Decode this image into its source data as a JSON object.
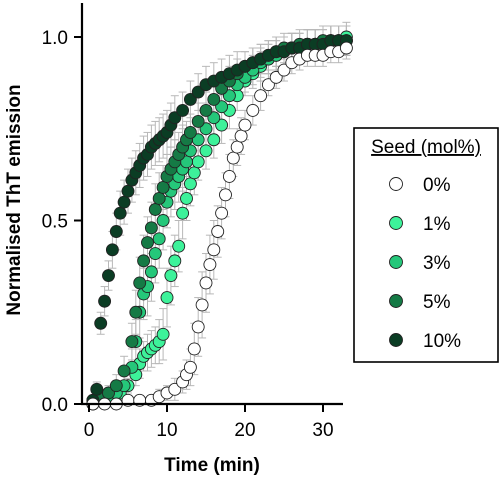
{
  "chart_data": {
    "type": "scatter",
    "xlabel": "Time (min)",
    "ylabel": "Normalised ThT emission",
    "xlim": [
      -0.5,
      34
    ],
    "ylim": [
      0,
      1.06
    ],
    "xticks": [
      0,
      10,
      20,
      30
    ],
    "xtick_labels": [
      "0",
      "10",
      "20",
      "30"
    ],
    "yticks": [
      0.0,
      0.5,
      1.0
    ],
    "ytick_labels": [
      "0.0",
      "0.5",
      "1.0"
    ],
    "grid": false,
    "legend": {
      "title": "Seed (mol%)",
      "placement": "right"
    },
    "series": [
      {
        "name": "0%",
        "color": "#ffffff",
        "x": [
          0.5,
          2,
          3.5,
          5,
          6.5,
          8,
          9,
          10,
          11,
          12,
          12.5,
          13,
          13.5,
          14,
          14.5,
          15,
          15.5,
          16,
          16.5,
          17,
          17.5,
          18,
          18.5,
          19,
          19.5,
          20,
          21,
          22,
          23,
          24,
          25,
          26,
          27,
          28,
          29,
          30,
          31,
          32,
          33
        ],
        "y": [
          0.0,
          0.0,
          0.0,
          0.01,
          0.01,
          0.01,
          0.02,
          0.03,
          0.04,
          0.06,
          0.08,
          0.1,
          0.15,
          0.21,
          0.27,
          0.33,
          0.38,
          0.42,
          0.47,
          0.52,
          0.57,
          0.62,
          0.67,
          0.7,
          0.73,
          0.76,
          0.8,
          0.84,
          0.87,
          0.89,
          0.91,
          0.93,
          0.94,
          0.95,
          0.95,
          0.95,
          0.96,
          0.96,
          0.97
        ],
        "err": [
          0.01,
          0.01,
          0.01,
          0.01,
          0.01,
          0.01,
          0.02,
          0.02,
          0.03,
          0.03,
          0.04,
          0.05,
          0.07,
          0.08,
          0.09,
          0.08,
          0.08,
          0.08,
          0.07,
          0.07,
          0.06,
          0.06,
          0.05,
          0.05,
          0.05,
          0.04,
          0.04,
          0.04,
          0.03,
          0.03,
          0.03,
          0.03,
          0.03,
          0.03,
          0.03,
          0.03,
          0.03,
          0.03,
          0.03
        ]
      },
      {
        "name": "1%",
        "color": "#3df29a",
        "x": [
          0.5,
          2,
          3,
          4,
          5,
          6,
          6.5,
          7,
          7.5,
          8,
          8.5,
          9,
          9.5,
          10,
          10.5,
          11,
          11.5,
          12,
          12.5,
          13,
          13.5,
          14,
          15,
          16,
          17,
          18,
          19,
          20,
          21,
          22,
          23,
          24,
          25,
          26,
          27,
          28,
          29,
          30,
          31,
          32,
          33
        ],
        "y": [
          0.0,
          0.01,
          0.02,
          0.03,
          0.05,
          0.08,
          0.11,
          0.13,
          0.14,
          0.15,
          0.16,
          0.17,
          0.19,
          0.29,
          0.35,
          0.39,
          0.43,
          0.52,
          0.56,
          0.6,
          0.63,
          0.66,
          0.69,
          0.72,
          0.76,
          0.8,
          0.84,
          0.88,
          0.9,
          0.92,
          0.94,
          0.95,
          0.96,
          0.97,
          0.97,
          0.98,
          0.98,
          0.99,
          0.99,
          0.99,
          1.0
        ],
        "err": [
          0.01,
          0.01,
          0.01,
          0.02,
          0.02,
          0.03,
          0.04,
          0.04,
          0.05,
          0.05,
          0.05,
          0.06,
          0.07,
          0.08,
          0.08,
          0.07,
          0.07,
          0.07,
          0.06,
          0.06,
          0.06,
          0.05,
          0.05,
          0.05,
          0.05,
          0.05,
          0.04,
          0.04,
          0.04,
          0.04,
          0.04,
          0.04,
          0.04,
          0.04,
          0.04,
          0.04,
          0.04,
          0.04,
          0.04,
          0.04,
          0.04
        ]
      },
      {
        "name": "3%",
        "color": "#25c77a",
        "x": [
          0.5,
          1.5,
          2.5,
          3.5,
          4.5,
          5.5,
          6,
          6.5,
          7,
          7.5,
          8,
          8.5,
          9,
          9.5,
          10,
          10.5,
          11,
          11.5,
          12,
          12.5,
          13,
          14,
          15,
          16,
          17,
          18,
          19,
          20,
          21,
          22,
          23,
          24,
          25,
          26,
          27,
          28,
          29,
          30,
          31,
          32,
          33
        ],
        "y": [
          0.0,
          0.01,
          0.02,
          0.03,
          0.05,
          0.1,
          0.17,
          0.25,
          0.3,
          0.32,
          0.36,
          0.41,
          0.45,
          0.5,
          0.55,
          0.58,
          0.6,
          0.62,
          0.64,
          0.66,
          0.69,
          0.72,
          0.75,
          0.78,
          0.81,
          0.84,
          0.87,
          0.89,
          0.91,
          0.93,
          0.94,
          0.95,
          0.96,
          0.97,
          0.97,
          0.98,
          0.98,
          0.98,
          0.99,
          0.99,
          0.99
        ],
        "err": [
          0.01,
          0.01,
          0.02,
          0.02,
          0.03,
          0.05,
          0.06,
          0.07,
          0.07,
          0.08,
          0.08,
          0.08,
          0.08,
          0.08,
          0.07,
          0.07,
          0.07,
          0.07,
          0.06,
          0.06,
          0.06,
          0.06,
          0.05,
          0.05,
          0.05,
          0.05,
          0.04,
          0.04,
          0.04,
          0.04,
          0.04,
          0.04,
          0.04,
          0.04,
          0.04,
          0.04,
          0.04,
          0.04,
          0.04,
          0.04,
          0.04
        ]
      },
      {
        "name": "5%",
        "color": "#157a45",
        "x": [
          0.5,
          1.5,
          2.5,
          3.5,
          4.5,
          5.5,
          6,
          6.5,
          7,
          7.5,
          8,
          8.5,
          9,
          9.5,
          10,
          10.5,
          11,
          11.5,
          12,
          12.5,
          13,
          14,
          15,
          16,
          17,
          18,
          19,
          20,
          21,
          22,
          23,
          24,
          25,
          26,
          27,
          28,
          29,
          30,
          31,
          32,
          33
        ],
        "y": [
          0.01,
          0.02,
          0.03,
          0.05,
          0.09,
          0.17,
          0.25,
          0.33,
          0.39,
          0.44,
          0.48,
          0.53,
          0.56,
          0.59,
          0.62,
          0.64,
          0.66,
          0.68,
          0.7,
          0.72,
          0.74,
          0.77,
          0.8,
          0.83,
          0.86,
          0.88,
          0.9,
          0.92,
          0.93,
          0.94,
          0.95,
          0.96,
          0.97,
          0.97,
          0.98,
          0.98,
          0.98,
          0.99,
          0.99,
          0.99,
          0.99
        ],
        "err": [
          0.01,
          0.01,
          0.02,
          0.03,
          0.04,
          0.05,
          0.06,
          0.07,
          0.07,
          0.07,
          0.07,
          0.07,
          0.07,
          0.06,
          0.06,
          0.06,
          0.06,
          0.06,
          0.06,
          0.05,
          0.05,
          0.05,
          0.05,
          0.05,
          0.04,
          0.04,
          0.04,
          0.04,
          0.04,
          0.04,
          0.04,
          0.04,
          0.04,
          0.04,
          0.04,
          0.04,
          0.04,
          0.04,
          0.04,
          0.04,
          0.04
        ]
      },
      {
        "name": "10%",
        "color": "#0b3d24",
        "x": [
          0.5,
          1,
          1.5,
          2,
          2.5,
          3,
          3.5,
          4,
          4.5,
          5,
          5.5,
          6,
          6.5,
          7,
          7.5,
          8,
          8.5,
          9,
          9.5,
          10,
          10.5,
          11,
          12,
          13,
          14,
          15,
          16,
          17,
          18,
          19,
          20,
          21,
          22,
          23,
          24,
          25,
          26,
          27,
          28,
          29,
          30,
          31,
          32,
          33
        ],
        "y": [
          0.01,
          0.04,
          0.22,
          0.28,
          0.35,
          0.42,
          0.47,
          0.52,
          0.55,
          0.58,
          0.61,
          0.63,
          0.65,
          0.67,
          0.68,
          0.7,
          0.71,
          0.72,
          0.73,
          0.74,
          0.76,
          0.78,
          0.8,
          0.83,
          0.85,
          0.87,
          0.88,
          0.89,
          0.9,
          0.91,
          0.92,
          0.93,
          0.94,
          0.95,
          0.96,
          0.96,
          0.97,
          0.97,
          0.98,
          0.98,
          0.98,
          0.99,
          0.99,
          0.99
        ],
        "err": [
          0.01,
          0.02,
          0.03,
          0.04,
          0.04,
          0.05,
          0.05,
          0.06,
          0.06,
          0.06,
          0.06,
          0.06,
          0.06,
          0.06,
          0.06,
          0.06,
          0.06,
          0.06,
          0.06,
          0.06,
          0.06,
          0.06,
          0.05,
          0.05,
          0.05,
          0.05,
          0.05,
          0.05,
          0.05,
          0.05,
          0.04,
          0.04,
          0.04,
          0.04,
          0.04,
          0.04,
          0.04,
          0.04,
          0.04,
          0.04,
          0.04,
          0.04,
          0.04,
          0.04
        ]
      }
    ]
  }
}
